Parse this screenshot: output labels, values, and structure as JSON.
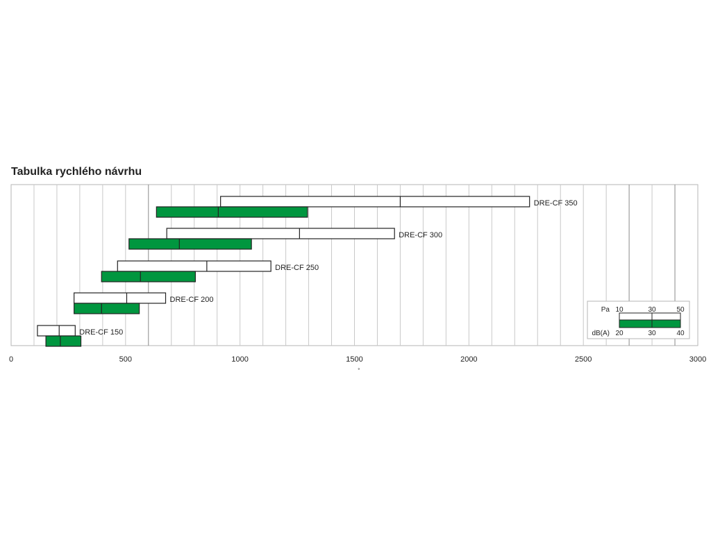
{
  "chart_data": {
    "type": "bar",
    "title": "Tabulka rychlého návrhu",
    "xlabel": "",
    "xlabel_mark": "˚",
    "xlim": [
      0,
      3000
    ],
    "x_ticks": [
      0,
      500,
      1000,
      1500,
      2000,
      2500,
      3000
    ],
    "grid": true,
    "bar_color": "#00963F",
    "series": [
      {
        "name": "Pa",
        "legend_values": [
          "10",
          "30",
          "50"
        ],
        "color": "#ffffff"
      },
      {
        "name": "dB(A)",
        "legend_values": [
          "20",
          "30",
          "40"
        ],
        "color": "#00963F"
      }
    ],
    "models": [
      {
        "label": "DRE-CF 150",
        "pa": [
          115,
          210,
          280
        ],
        "db": [
          152,
          215,
          305
        ]
      },
      {
        "label": "DRE-CF 200",
        "pa": [
          275,
          505,
          675
        ],
        "db": [
          275,
          395,
          560
        ]
      },
      {
        "label": "DRE-CF 250",
        "pa": [
          465,
          855,
          1135
        ],
        "db": [
          395,
          565,
          805
        ]
      },
      {
        "label": "DRE-CF 300",
        "pa": [
          680,
          1260,
          1675
        ],
        "db": [
          515,
          735,
          1050
        ]
      },
      {
        "label": "DRE-CF 350",
        "pa": [
          915,
          1700,
          2265
        ],
        "db": [
          635,
          905,
          1295
        ]
      }
    ],
    "legend": {
      "placement": "bottom-right",
      "pa_label": "Pa",
      "db_label": "dB(A)",
      "pa_values": [
        "10",
        "30",
        "50"
      ],
      "db_values": [
        "20",
        "30",
        "40"
      ]
    }
  }
}
